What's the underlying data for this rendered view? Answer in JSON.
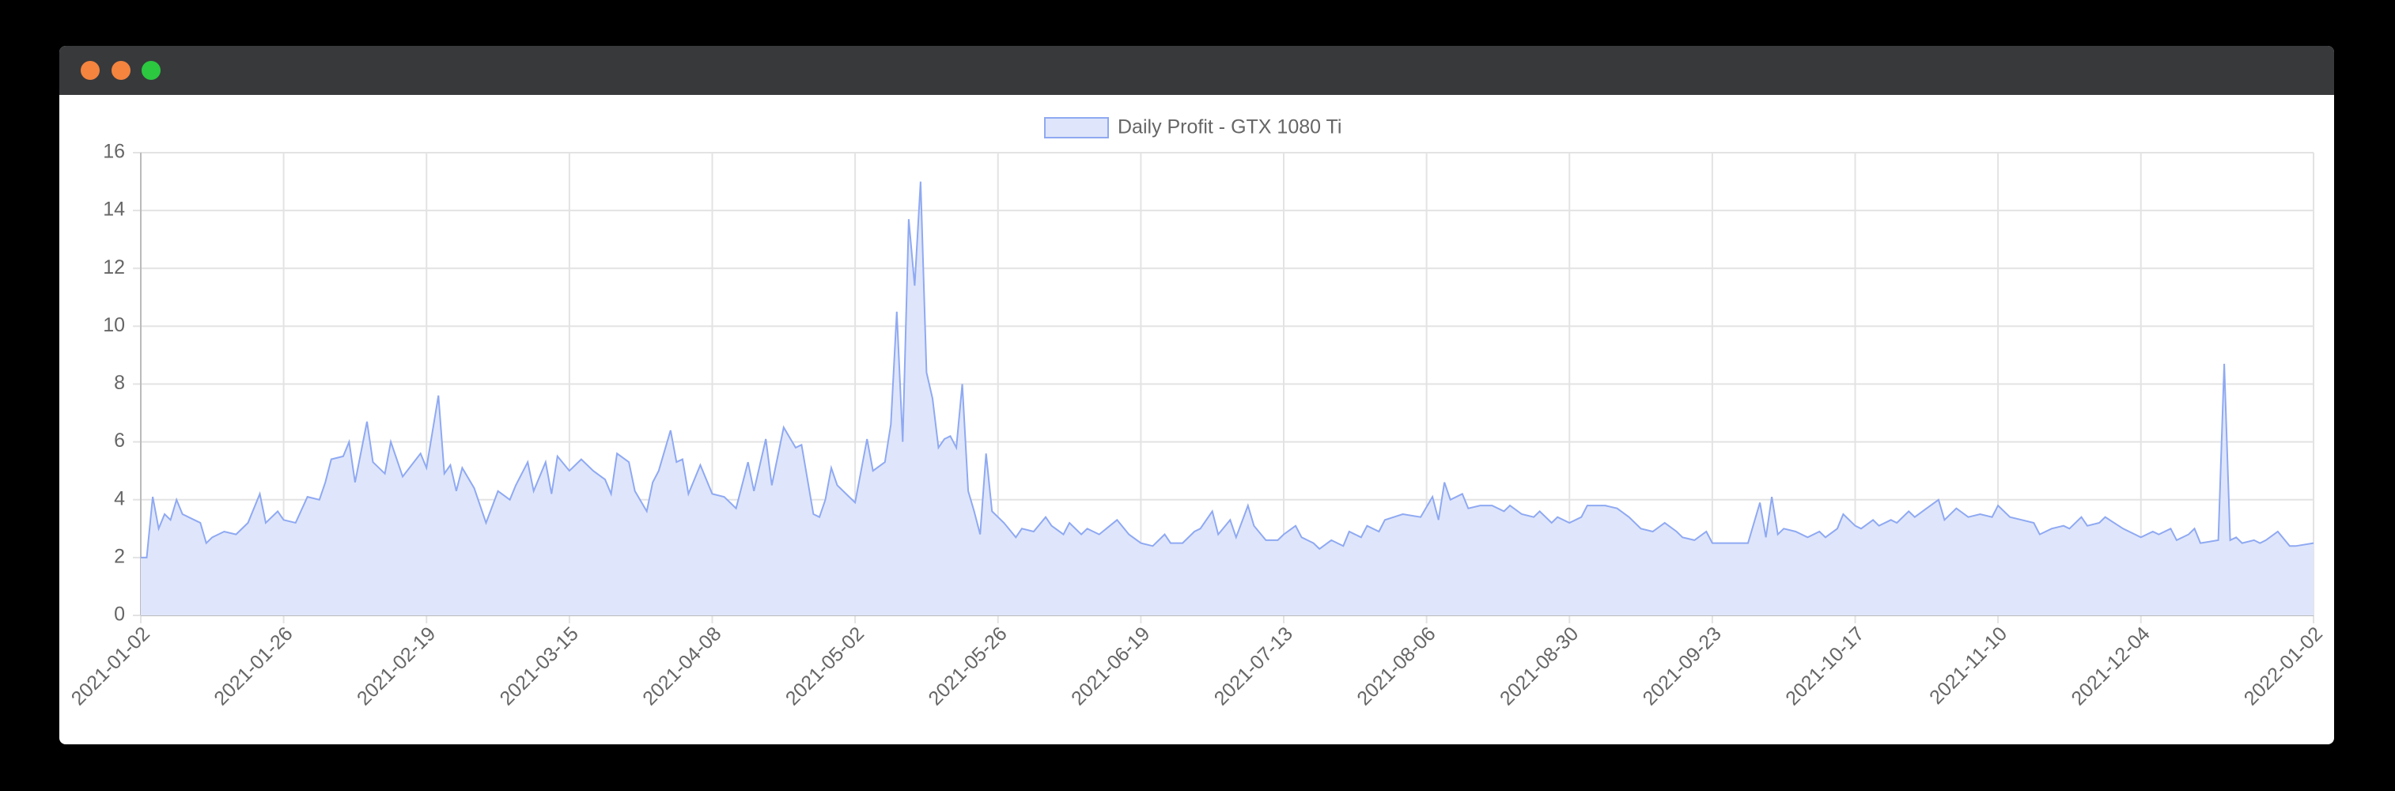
{
  "chart_data": {
    "type": "area",
    "x": [
      "2021-01-02",
      "2021-01-03",
      "2021-01-04",
      "2021-01-05",
      "2021-01-06",
      "2021-01-07",
      "2021-01-08",
      "2021-01-09",
      "2021-01-11",
      "2021-01-12",
      "2021-01-13",
      "2021-01-14",
      "2021-01-16",
      "2021-01-18",
      "2021-01-20",
      "2021-01-22",
      "2021-01-23",
      "2021-01-25",
      "2021-01-26",
      "2021-01-28",
      "2021-01-30",
      "2021-02-01",
      "2021-02-02",
      "2021-02-03",
      "2021-02-05",
      "2021-02-06",
      "2021-02-07",
      "2021-02-09",
      "2021-02-10",
      "2021-02-12",
      "2021-02-13",
      "2021-02-15",
      "2021-02-18",
      "2021-02-19",
      "2021-02-21",
      "2021-02-22",
      "2021-02-23",
      "2021-02-24",
      "2021-02-25",
      "2021-02-27",
      "2021-03-01",
      "2021-03-03",
      "2021-03-05",
      "2021-03-06",
      "2021-03-08",
      "2021-03-09",
      "2021-03-11",
      "2021-03-12",
      "2021-03-13",
      "2021-03-15",
      "2021-03-17",
      "2021-03-19",
      "2021-03-21",
      "2021-03-22",
      "2021-03-23",
      "2021-03-25",
      "2021-03-26",
      "2021-03-28",
      "2021-03-29",
      "2021-03-30",
      "2021-04-01",
      "2021-04-02",
      "2021-04-03",
      "2021-04-04",
      "2021-04-06",
      "2021-04-08",
      "2021-04-10",
      "2021-04-12",
      "2021-04-14",
      "2021-04-15",
      "2021-04-17",
      "2021-04-18",
      "2021-04-20",
      "2021-04-22",
      "2021-04-23",
      "2021-04-25",
      "2021-04-26",
      "2021-04-27",
      "2021-04-28",
      "2021-04-29",
      "2021-05-01",
      "2021-05-02",
      "2021-05-04",
      "2021-05-05",
      "2021-05-07",
      "2021-05-08",
      "2021-05-09",
      "2021-05-10",
      "2021-05-11",
      "2021-05-12",
      "2021-05-13",
      "2021-05-14",
      "2021-05-15",
      "2021-05-16",
      "2021-05-17",
      "2021-05-18",
      "2021-05-19",
      "2021-05-20",
      "2021-05-21",
      "2021-05-22",
      "2021-05-23",
      "2021-05-24",
      "2021-05-25",
      "2021-05-27",
      "2021-05-29",
      "2021-05-30",
      "2021-06-01",
      "2021-06-03",
      "2021-06-04",
      "2021-06-06",
      "2021-06-07",
      "2021-06-09",
      "2021-06-10",
      "2021-06-12",
      "2021-06-15",
      "2021-06-17",
      "2021-06-19",
      "2021-06-21",
      "2021-06-23",
      "2021-06-24",
      "2021-06-26",
      "2021-06-28",
      "2021-06-29",
      "2021-07-01",
      "2021-07-02",
      "2021-07-04",
      "2021-07-05",
      "2021-07-07",
      "2021-07-08",
      "2021-07-10",
      "2021-07-12",
      "2021-07-13",
      "2021-07-15",
      "2021-07-16",
      "2021-07-18",
      "2021-07-19",
      "2021-07-21",
      "2021-07-23",
      "2021-07-24",
      "2021-07-26",
      "2021-07-27",
      "2021-07-29",
      "2021-07-30",
      "2021-08-02",
      "2021-08-05",
      "2021-08-07",
      "2021-08-08",
      "2021-08-09",
      "2021-08-10",
      "2021-08-12",
      "2021-08-13",
      "2021-08-15",
      "2021-08-17",
      "2021-08-19",
      "2021-08-20",
      "2021-08-22",
      "2021-08-24",
      "2021-08-25",
      "2021-08-27",
      "2021-08-28",
      "2021-08-30",
      "2021-09-01",
      "2021-09-02",
      "2021-09-05",
      "2021-09-07",
      "2021-09-09",
      "2021-09-11",
      "2021-09-13",
      "2021-09-15",
      "2021-09-17",
      "2021-09-18",
      "2021-09-20",
      "2021-09-22",
      "2021-09-23",
      "2021-09-26",
      "2021-09-29",
      "2021-10-01",
      "2021-10-02",
      "2021-10-03",
      "2021-10-04",
      "2021-10-05",
      "2021-10-07",
      "2021-10-09",
      "2021-10-11",
      "2021-10-12",
      "2021-10-14",
      "2021-10-15",
      "2021-10-17",
      "2021-10-18",
      "2021-10-20",
      "2021-10-21",
      "2021-10-23",
      "2021-10-24",
      "2021-10-26",
      "2021-10-27",
      "2021-10-29",
      "2021-10-31",
      "2021-11-01",
      "2021-11-03",
      "2021-11-05",
      "2021-11-07",
      "2021-11-09",
      "2021-11-10",
      "2021-11-12",
      "2021-11-14",
      "2021-11-16",
      "2021-11-17",
      "2021-11-19",
      "2021-11-21",
      "2021-11-22",
      "2021-11-24",
      "2021-11-25",
      "2021-11-27",
      "2021-11-28",
      "2021-12-01",
      "2021-12-04",
      "2021-12-06",
      "2021-12-07",
      "2021-12-09",
      "2021-12-10",
      "2021-12-12",
      "2021-12-13",
      "2021-12-14",
      "2021-12-17",
      "2021-12-18",
      "2021-12-19",
      "2021-12-20",
      "2021-12-21",
      "2021-12-23",
      "2021-12-24",
      "2021-12-25",
      "2021-12-27",
      "2021-12-29",
      "2021-12-30",
      "2022-01-02"
    ],
    "series": [
      {
        "name": "Daily Profit - GTX 1080 Ti",
        "color": "#8fa9f2",
        "fill": "#dfe6fb",
        "values": [
          2.0,
          2.0,
          4.1,
          3.0,
          3.5,
          3.3,
          4.0,
          3.5,
          3.3,
          3.2,
          2.5,
          2.7,
          2.9,
          2.8,
          3.2,
          4.2,
          3.2,
          3.6,
          3.3,
          3.2,
          4.1,
          4.0,
          4.6,
          5.4,
          5.5,
          6.0,
          4.6,
          6.7,
          5.3,
          4.9,
          6.0,
          4.8,
          5.6,
          5.1,
          7.6,
          4.9,
          5.2,
          4.3,
          5.1,
          4.4,
          3.2,
          4.3,
          4.0,
          4.5,
          5.3,
          4.3,
          5.3,
          4.2,
          5.5,
          5.0,
          5.4,
          5.0,
          4.7,
          4.2,
          5.6,
          5.3,
          4.3,
          3.6,
          4.6,
          5.0,
          6.4,
          5.3,
          5.4,
          4.2,
          5.2,
          4.2,
          4.1,
          3.7,
          5.3,
          4.3,
          6.1,
          4.5,
          6.5,
          5.8,
          5.9,
          3.5,
          3.4,
          4.0,
          5.1,
          4.5,
          4.1,
          3.9,
          6.1,
          5.0,
          5.3,
          6.6,
          10.5,
          6.0,
          13.7,
          11.4,
          15.0,
          8.4,
          7.5,
          5.8,
          6.1,
          6.2,
          5.8,
          8.0,
          4.3,
          3.6,
          2.8,
          5.6,
          3.6,
          3.2,
          2.7,
          3.0,
          2.9,
          3.4,
          3.1,
          2.8,
          3.2,
          2.8,
          3.0,
          2.8,
          3.3,
          2.8,
          2.5,
          2.4,
          2.8,
          2.5,
          2.5,
          2.9,
          3.0,
          3.6,
          2.8,
          3.3,
          2.7,
          3.8,
          3.1,
          2.6,
          2.6,
          2.8,
          3.1,
          2.7,
          2.5,
          2.3,
          2.6,
          2.4,
          2.9,
          2.7,
          3.1,
          2.9,
          3.3,
          3.5,
          3.4,
          4.1,
          3.3,
          4.6,
          4.0,
          4.2,
          3.7,
          3.8,
          3.8,
          3.6,
          3.8,
          3.5,
          3.4,
          3.6,
          3.2,
          3.4,
          3.2,
          3.4,
          3.8,
          3.8,
          3.7,
          3.4,
          3.0,
          2.9,
          3.2,
          2.9,
          2.7,
          2.6,
          2.9,
          2.5,
          2.5,
          2.5,
          3.9,
          2.7,
          4.1,
          2.8,
          3.0,
          2.9,
          2.7,
          2.9,
          2.7,
          3.0,
          3.5,
          3.1,
          3.0,
          3.3,
          3.1,
          3.3,
          3.2,
          3.6,
          3.4,
          3.7,
          4.0,
          3.3,
          3.7,
          3.4,
          3.5,
          3.4,
          3.8,
          3.4,
          3.3,
          3.2,
          2.8,
          3.0,
          3.1,
          3.0,
          3.4,
          3.1,
          3.2,
          3.4,
          3.0,
          2.7,
          2.9,
          2.8,
          3.0,
          2.6,
          2.8,
          3.0,
          2.5,
          2.6,
          8.7,
          2.6,
          2.7,
          2.5,
          2.6,
          2.5,
          2.6,
          2.9,
          2.4,
          2.4,
          2.5
        ]
      }
    ],
    "xlim": [
      "2021-01-02",
      "2022-01-02"
    ],
    "xticks": [
      "2021-01-02",
      "2021-01-26",
      "2021-02-19",
      "2021-03-15",
      "2021-04-08",
      "2021-05-02",
      "2021-05-26",
      "2021-06-19",
      "2021-07-13",
      "2021-08-06",
      "2021-08-30",
      "2021-09-23",
      "2021-10-17",
      "2021-11-10",
      "2021-12-04",
      "2022-01-02"
    ],
    "ylim": [
      0,
      16
    ],
    "yticks": [
      0,
      2,
      4,
      6,
      8,
      10,
      12,
      14,
      16
    ],
    "grid": true,
    "legend": "top"
  }
}
